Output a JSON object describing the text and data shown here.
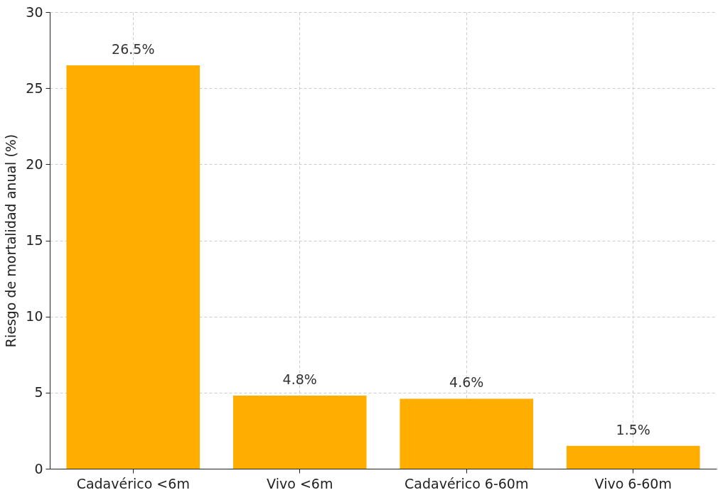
{
  "chart_data": {
    "type": "bar",
    "ylabel": "Riesgo de mortalidad anual (%)",
    "categories": [
      "Cadavérico <6m",
      "Vivo <6m",
      "Cadavérico 6-60m",
      "Vivo 6-60m"
    ],
    "values": [
      26.5,
      4.8,
      4.6,
      1.5
    ],
    "value_labels": [
      "26.5%",
      "4.8%",
      "4.6%",
      "1.5%"
    ],
    "color": "#ffae00",
    "ylim": [
      0,
      30
    ],
    "yticks": [
      0,
      5,
      10,
      15,
      20,
      25,
      30
    ],
    "grid": true
  }
}
